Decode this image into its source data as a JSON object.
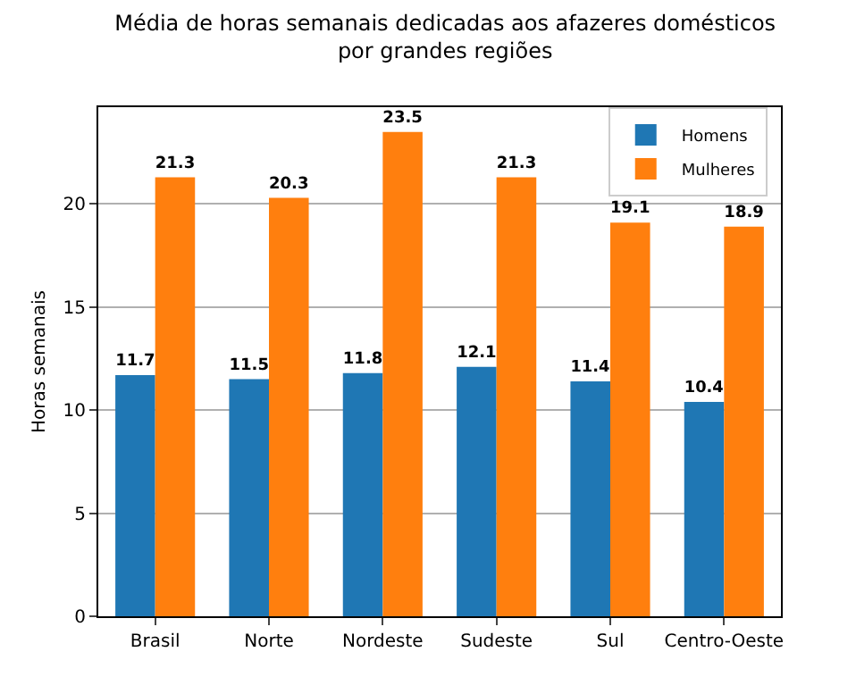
{
  "chart_data": {
    "type": "bar",
    "title": "Média de horas semanais dedicadas aos afazeres domésticos\npor grandes regiões",
    "ylabel": "Horas semanais",
    "categories": [
      "Brasil",
      "Norte",
      "Nordeste",
      "Sudeste",
      "Sul",
      "Centro-Oeste"
    ],
    "series": [
      {
        "name": "Homens",
        "color": "#1f77b4",
        "values": [
          11.7,
          11.5,
          11.8,
          12.1,
          11.4,
          10.4
        ]
      },
      {
        "name": "Mulheres",
        "color": "#ff7f0e",
        "values": [
          21.3,
          20.3,
          23.5,
          21.3,
          19.1,
          18.9
        ]
      }
    ],
    "ylim": [
      0,
      24.7
    ],
    "yticks": [
      0,
      5,
      10,
      15,
      20
    ],
    "grid": "y",
    "legend": "top right",
    "data_labels": true
  }
}
